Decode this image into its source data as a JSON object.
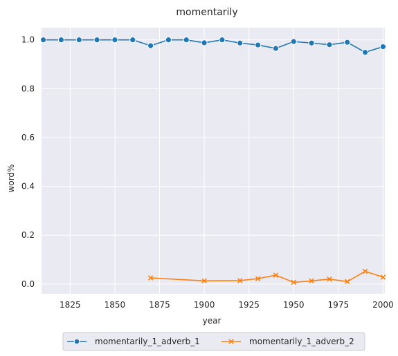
{
  "chart_data": {
    "type": "line",
    "title": "momentarily",
    "xlabel": "year",
    "ylabel": "word%",
    "xlim": [
      1809,
      2001
    ],
    "ylim": [
      -0.04,
      1.05
    ],
    "x_ticks": [
      1825,
      1850,
      1875,
      1900,
      1925,
      1950,
      1975,
      2000
    ],
    "y_ticks": [
      0.0,
      0.2,
      0.4,
      0.6,
      0.8,
      1.0
    ],
    "x_tick_labels": [
      "1825",
      "1850",
      "1875",
      "1900",
      "1925",
      "1950",
      "1975",
      "2000"
    ],
    "y_tick_labels": [
      "0.0",
      "0.2",
      "0.4",
      "0.6",
      "0.8",
      "1.0"
    ],
    "grid": true,
    "legend_position": "bottom-center",
    "series": [
      {
        "name": "momentarily_1_adverb_1",
        "color": "#1f77b4",
        "marker": "circle",
        "x": [
          1810,
          1820,
          1830,
          1840,
          1850,
          1860,
          1870,
          1880,
          1890,
          1900,
          1910,
          1920,
          1930,
          1940,
          1950,
          1960,
          1970,
          1980,
          1990,
          2000
        ],
        "y": [
          1.0,
          1.0,
          1.0,
          1.0,
          1.0,
          1.0,
          0.976,
          1.0,
          1.0,
          0.988,
          1.0,
          0.987,
          0.979,
          0.965,
          0.993,
          0.987,
          0.98,
          0.99,
          0.949,
          0.972
        ]
      },
      {
        "name": "momentarily_1_adverb_2",
        "color": "#ff7f0e",
        "marker": "x",
        "x": [
          1870,
          1900,
          1920,
          1930,
          1940,
          1950,
          1960,
          1970,
          1980,
          1990,
          2000
        ],
        "y": [
          0.025,
          0.013,
          0.014,
          0.022,
          0.036,
          0.007,
          0.013,
          0.02,
          0.01,
          0.052,
          0.028
        ]
      }
    ]
  }
}
